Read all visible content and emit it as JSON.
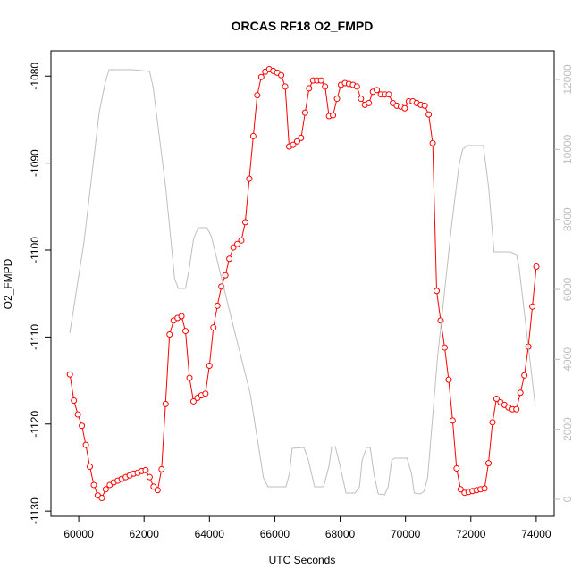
{
  "chart_data": {
    "type": "line",
    "title": "ORCAS RF18 O2_FMPD",
    "xlabel": "UTC Seconds",
    "ylabel": "O2_FMPD",
    "xlim": [
      59150,
      74550
    ],
    "ylim": [
      -1130.6,
      -1077.1
    ],
    "y2lim": [
      -485,
      12817
    ],
    "xticks": [
      60000,
      62000,
      64000,
      66000,
      68000,
      70000,
      72000,
      74000
    ],
    "yticks": [
      -1130,
      -1120,
      -1110,
      -1100,
      -1090,
      -1080
    ],
    "y2ticks": [
      0,
      2000,
      4000,
      6000,
      8000,
      10000,
      12000
    ],
    "series": [
      {
        "color": "#ff0000",
        "markers": true,
        "x": [
          59730,
          59852,
          59974,
          60096,
          60218,
          60340,
          60462,
          60584,
          60706,
          60828,
          60950,
          61072,
          61194,
          61316,
          61438,
          61560,
          61682,
          61804,
          61926,
          62048,
          62170,
          62292,
          62414,
          62536,
          62658,
          62780,
          62902,
          63024,
          63146,
          63268,
          63390,
          63512,
          63634,
          63756,
          63878,
          64000,
          64122,
          64244,
          64366,
          64488,
          64610,
          64732,
          64854,
          64976,
          65098,
          65220,
          65342,
          65464,
          65586,
          65708,
          65830,
          65952,
          66074,
          66196,
          66318,
          66440,
          66562,
          66684,
          66806,
          66928,
          67050,
          67172,
          67294,
          67416,
          67538,
          67660,
          67782,
          67904,
          68026,
          68148,
          68270,
          68392,
          68514,
          68636,
          68758,
          68880,
          69002,
          69124,
          69246,
          69368,
          69490,
          69612,
          69734,
          69856,
          69978,
          70100,
          70222,
          70344,
          70466,
          70588,
          70710,
          70832,
          70954,
          71076,
          71198,
          71320,
          71442,
          71564,
          71686,
          71808,
          71930,
          72052,
          72174,
          72296,
          72418,
          72540,
          72662,
          72784,
          72906,
          73028,
          73150,
          73272,
          73394,
          73516,
          73638,
          73760,
          73882,
          74004
        ],
        "values": [
          -1114.3,
          -1117.3,
          -1118.9,
          -1120.2,
          -1122.4,
          -1124.9,
          -1127.0,
          -1128.2,
          -1128.5,
          -1127.5,
          -1127.0,
          -1126.7,
          -1126.5,
          -1126.3,
          -1126.1,
          -1125.9,
          -1125.7,
          -1125.6,
          -1125.4,
          -1125.3,
          -1126.1,
          -1127.2,
          -1127.6,
          -1125.2,
          -1117.7,
          -1109.7,
          -1108.1,
          -1107.8,
          -1107.6,
          -1109.3,
          -1114.7,
          -1117.4,
          -1117.0,
          -1116.7,
          -1116.5,
          -1113.3,
          -1108.9,
          -1106.4,
          -1104.2,
          -1102.9,
          -1101.0,
          -1099.7,
          -1099.3,
          -1098.9,
          -1096.8,
          -1091.8,
          -1086.9,
          -1082.2,
          -1080.1,
          -1079.5,
          -1079.2,
          -1079.4,
          -1079.6,
          -1079.9,
          -1081.2,
          -1088.1,
          -1087.9,
          -1087.5,
          -1087.1,
          -1084.2,
          -1081.4,
          -1080.5,
          -1080.5,
          -1080.5,
          -1081.2,
          -1084.6,
          -1084.5,
          -1082.6,
          -1081.0,
          -1080.8,
          -1080.9,
          -1081.0,
          -1081.2,
          -1082.6,
          -1083.3,
          -1083.1,
          -1081.8,
          -1081.6,
          -1082.1,
          -1082.1,
          -1082.1,
          -1083.1,
          -1083.4,
          -1083.5,
          -1083.7,
          -1082.9,
          -1082.9,
          -1083.1,
          -1083.3,
          -1083.4,
          -1084.4,
          -1087.7,
          -1104.7,
          -1108.1,
          -1111.2,
          -1114.9,
          -1119.6,
          -1125.1,
          -1127.5,
          -1127.9,
          -1127.8,
          -1127.7,
          -1127.6,
          -1127.5,
          -1127.4,
          -1124.5,
          -1119.8,
          -1117.1,
          -1117.5,
          -1117.8,
          -1118.1,
          -1118.3,
          -1118.3,
          -1116.4,
          -1114.4,
          -1111.1,
          -1106.5,
          -1101.9
        ]
      },
      {
        "color": "#bebebe",
        "axis": "y2",
        "markers": false,
        "x": [
          59726,
          60165,
          60631,
          60824,
          60933,
          61674,
          62169,
          62278,
          62663,
          62937,
          63047,
          63266,
          63376,
          63513,
          63651,
          63925,
          64063,
          64227,
          64694,
          65243,
          65655,
          65792,
          66341,
          66451,
          66533,
          66890,
          67027,
          67219,
          67493,
          67658,
          67741,
          67851,
          67988,
          68180,
          68455,
          68592,
          68674,
          68812,
          68921,
          69031,
          69168,
          69360,
          69470,
          69580,
          69662,
          70047,
          70184,
          70266,
          70458,
          70568,
          70678,
          70980,
          71419,
          71639,
          71749,
          71886,
          72380,
          72545,
          72709,
          73204,
          73396,
          73478,
          73973
        ],
        "values": [
          4749,
          7378,
          11080,
          11973,
          12280,
          12280,
          12229,
          11769,
          8910,
          6306,
          6025,
          6025,
          6561,
          7429,
          7761,
          7761,
          7506,
          6868,
          5080,
          3038,
          613,
          357,
          357,
          740,
          1455,
          1481,
          1123,
          357,
          357,
          945,
          1481,
          1506,
          996,
          179,
          179,
          357,
          1123,
          1481,
          1481,
          740,
          153,
          128,
          357,
          1123,
          1174,
          1174,
          740,
          179,
          153,
          230,
          613,
          4059,
          7889,
          9548,
          10008,
          10110,
          10110,
          8910,
          7072,
          7072,
          6995,
          6612,
          2655
        ]
      }
    ]
  }
}
